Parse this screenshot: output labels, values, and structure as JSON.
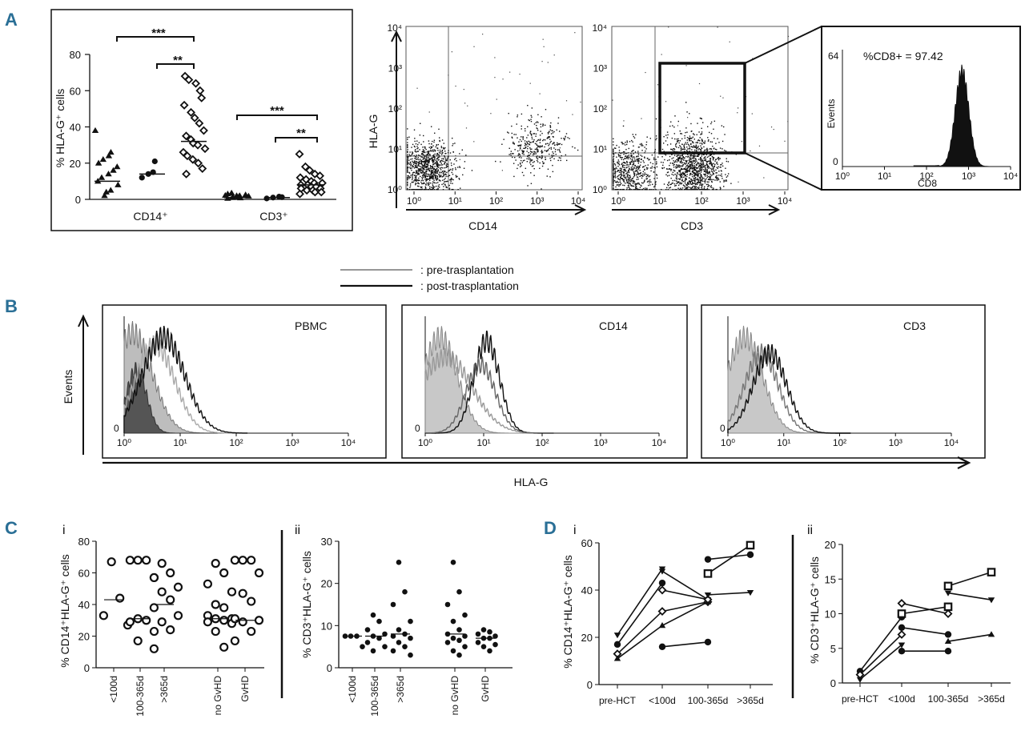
{
  "panels": {
    "A": "A",
    "B": "B",
    "C": "C",
    "D": "D",
    "C_i": "i",
    "C_ii": "ii",
    "D_i": "i",
    "D_ii": "ii"
  },
  "legend": {
    "pre": ": pre-trasplantation",
    "post": ": post-trasplantation"
  },
  "chart_data": [
    {
      "id": "A-scatter",
      "type": "scatter",
      "ylabel": "% HLA-G⁺ cells",
      "ylim": [
        0,
        80
      ],
      "yticks": [
        "0",
        "20",
        "40",
        "60",
        "80"
      ],
      "groups": [
        "CD14⁺",
        "CD3⁺"
      ],
      "significance": [
        "***",
        "**",
        "***",
        "**"
      ],
      "series": [
        {
          "marker": "triangle",
          "group": 0,
          "median": 10,
          "values": [
            38,
            2,
            4,
            5,
            8,
            10,
            12,
            14,
            16,
            18,
            20,
            22,
            24,
            26
          ]
        },
        {
          "marker": "circle-filled",
          "group": 0,
          "median": 14,
          "values": [
            12,
            14,
            15,
            21
          ]
        },
        {
          "marker": "diamond-open",
          "group": 0,
          "median": 32,
          "values": [
            68,
            66,
            64,
            60,
            56,
            52,
            48,
            45,
            42,
            38,
            35,
            33,
            31,
            30,
            28,
            26,
            24,
            22,
            20,
            17,
            14
          ]
        },
        {
          "marker": "triangle",
          "group": 1,
          "median": 1,
          "values": [
            0.5,
            1,
            1.5,
            2,
            2.5,
            3,
            1,
            2,
            0.8,
            1.8,
            2.2,
            3.5
          ]
        },
        {
          "marker": "circle-filled",
          "group": 1,
          "median": 1,
          "values": [
            0.5,
            1,
            1.5,
            1.2
          ]
        },
        {
          "marker": "diamond-open",
          "group": 1,
          "median": 8,
          "values": [
            25,
            18,
            16,
            14,
            13,
            12,
            11,
            10,
            9,
            9,
            8,
            8,
            7,
            7,
            6,
            6,
            5,
            5,
            4,
            4,
            3
          ]
        }
      ]
    },
    {
      "id": "A-dot-CD14",
      "type": "scatter",
      "xlabel": "CD14",
      "ylabel": "HLA-G",
      "xticks": [
        "10⁰",
        "10¹",
        "10²",
        "10³",
        "10⁴"
      ],
      "yticks": [
        "10⁰",
        "10¹",
        "10²",
        "10³",
        "10⁴"
      ],
      "scale": "log",
      "clusters": [
        {
          "x": 3,
          "y": 3.5,
          "n": 900
        },
        {
          "x": 900,
          "y": 12,
          "n": 350
        }
      ]
    },
    {
      "id": "A-dot-CD3",
      "type": "scatter",
      "xlabel": "CD3",
      "xticks": [
        "10⁰",
        "10¹",
        "10²",
        "10³",
        "10⁴"
      ],
      "yticks": [
        "10⁰",
        "10¹",
        "10²",
        "10³",
        "10⁴"
      ],
      "scale": "log",
      "clusters": [
        {
          "x": 2.5,
          "y": 3,
          "n": 600
        },
        {
          "x": 70,
          "y": 3,
          "n": 900
        },
        {
          "x": 60,
          "y": 15,
          "n": 180
        }
      ]
    },
    {
      "id": "A-hist-CD8",
      "type": "area",
      "annotation": "%CD8+ = 97.42",
      "xlabel": "CD8",
      "ylabel": "Events",
      "xticks": [
        "10⁰",
        "10¹",
        "10²",
        "10³",
        "10⁴"
      ],
      "yticks": [
        "0",
        "64"
      ],
      "scale": "log",
      "peak_x": 700
    },
    {
      "id": "B-PBMC",
      "type": "area",
      "title": "PBMC",
      "ylabel": "Events",
      "xlabel": "HLA-G",
      "xticks": [
        "10⁰",
        "10¹",
        "10²",
        "10³",
        "10⁴"
      ],
      "yticks": [
        "0"
      ]
    },
    {
      "id": "B-CD14",
      "type": "area",
      "title": "CD14",
      "xticks": [
        "10⁰",
        "10¹",
        "10²",
        "10³",
        "10⁴"
      ],
      "yticks": [
        "0"
      ]
    },
    {
      "id": "B-CD3",
      "type": "area",
      "title": "CD3",
      "xticks": [
        "10⁰",
        "10¹",
        "10²",
        "10³",
        "10⁴"
      ],
      "yticks": [
        "0"
      ]
    },
    {
      "id": "C-i",
      "type": "scatter",
      "ylabel": "% CD14⁺HLA-G⁺ cells",
      "ylim": [
        0,
        80
      ],
      "yticks": [
        "0",
        "20",
        "40",
        "60",
        "80"
      ],
      "categories": [
        "<100d",
        "100-365d",
        ">365d",
        "no GvHD",
        "GvHD"
      ],
      "medians": [
        43,
        31,
        40,
        31,
        30
      ],
      "values": [
        [
          67,
          44,
          33,
          27
        ],
        [
          68,
          68,
          68,
          57,
          31,
          30,
          29,
          23,
          17
        ],
        [
          66,
          60,
          57,
          51,
          48,
          43,
          38,
          33,
          29,
          24,
          12
        ],
        [
          66,
          60,
          53,
          48,
          40,
          38,
          33,
          31,
          31,
          30,
          29,
          28,
          23,
          13
        ],
        [
          68,
          68,
          68,
          60,
          47,
          42,
          31,
          30,
          29,
          23,
          17
        ]
      ]
    },
    {
      "id": "C-ii",
      "type": "scatter",
      "ylabel": "% CD3⁺HLA-G⁺ cells",
      "ylim": [
        0,
        30
      ],
      "yticks": [
        "0",
        "10",
        "20",
        "30"
      ],
      "categories": [
        "<100d",
        "100-365d",
        ">365d",
        "no GvHD",
        "GvHD"
      ],
      "medians": [
        7.5,
        7.5,
        8,
        8,
        7
      ],
      "values": [
        [
          7.5,
          7.5,
          7.5,
          5
        ],
        [
          12.5,
          11,
          9,
          8,
          7.5,
          7,
          6,
          5,
          4
        ],
        [
          25,
          18,
          15,
          11,
          9,
          8,
          7.5,
          7,
          6,
          5,
          4,
          3
        ],
        [
          25,
          18,
          15,
          12.5,
          11,
          9,
          8,
          7.5,
          7,
          6.5,
          6,
          5,
          4,
          3
        ],
        [
          9,
          8.5,
          8,
          7.5,
          7,
          7,
          6,
          5.5,
          5,
          4
        ]
      ]
    },
    {
      "id": "D-i",
      "type": "line",
      "ylabel": "% CD14⁺HLA-G⁺ cells",
      "ylim": [
        0,
        60
      ],
      "yticks": [
        "0",
        "20",
        "40",
        "60"
      ],
      "categories": [
        "pre-HCT",
        "<100d",
        "100-365d",
        ">365d"
      ],
      "series": [
        {
          "marker": "triangle-down",
          "values": [
            21,
            49,
            null,
            null
          ]
        },
        {
          "marker": "circle",
          "values": [
            17,
            43,
            null,
            null
          ]
        },
        {
          "marker": "diamond",
          "values": [
            13,
            31,
            35,
            null
          ]
        },
        {
          "marker": "triangle",
          "values": [
            11,
            25,
            35,
            null
          ]
        },
        {
          "marker": "triangle-down-b",
          "values": [
            null,
            48,
            36,
            null
          ]
        },
        {
          "marker": "diamond-b",
          "values": [
            null,
            40,
            36,
            null
          ]
        },
        {
          "marker": "circle-b",
          "values": [
            null,
            16,
            18,
            null
          ]
        },
        {
          "marker": "circle-c",
          "values": [
            null,
            null,
            53,
            55
          ]
        },
        {
          "marker": "square",
          "values": [
            null,
            null,
            47,
            59
          ]
        },
        {
          "marker": "triangle-down-c",
          "values": [
            null,
            null,
            38,
            39
          ]
        }
      ]
    },
    {
      "id": "D-ii",
      "type": "line",
      "ylabel": "% CD3⁺HLA-G⁺ cells",
      "ylim": [
        0,
        20
      ],
      "yticks": [
        "0",
        "5",
        "10",
        "15",
        "20"
      ],
      "categories": [
        "pre-HCT",
        "<100d",
        "100-365d",
        ">365d"
      ],
      "series": [
        {
          "marker": "circle",
          "values": [
            1.7,
            9.5,
            null,
            null
          ]
        },
        {
          "marker": "diamond",
          "values": [
            1.2,
            7,
            null,
            null
          ]
        },
        {
          "marker": "triangle-down",
          "values": [
            0.5,
            5.5,
            null,
            null
          ]
        },
        {
          "marker": "diamond-b",
          "values": [
            null,
            11.5,
            10,
            null
          ]
        },
        {
          "marker": "square",
          "values": [
            null,
            10,
            11,
            null
          ]
        },
        {
          "marker": "circle-b",
          "values": [
            null,
            8,
            7,
            null
          ]
        },
        {
          "marker": "circle-c",
          "values": [
            null,
            4.6,
            4.6,
            null
          ]
        },
        {
          "marker": "triangle-down-b",
          "values": [
            null,
            null,
            13,
            12
          ]
        },
        {
          "marker": "square-b",
          "values": [
            null,
            null,
            14,
            16
          ]
        },
        {
          "marker": "triangle",
          "values": [
            null,
            null,
            6,
            7
          ]
        }
      ]
    }
  ]
}
